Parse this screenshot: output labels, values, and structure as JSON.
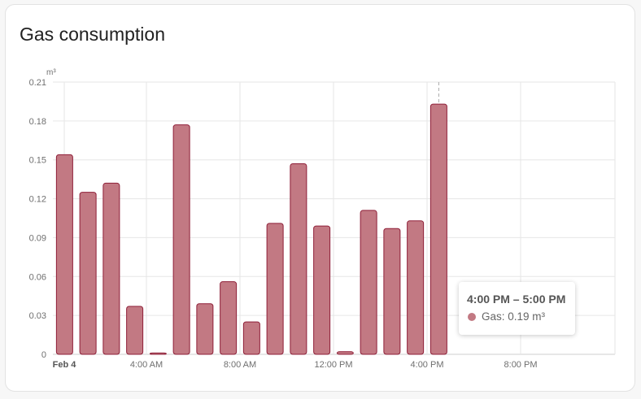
{
  "card": {
    "title": "Gas consumption"
  },
  "chart_data": {
    "type": "bar",
    "unit": "m³",
    "x_ticks": [
      "Feb 4",
      "4:00 AM",
      "8:00 AM",
      "12:00 PM",
      "4:00 PM",
      "8:00 PM"
    ],
    "hours": [
      0,
      1,
      2,
      3,
      4,
      5,
      6,
      7,
      8,
      9,
      10,
      11,
      12,
      13,
      14,
      15,
      16
    ],
    "values": [
      0.154,
      0.125,
      0.132,
      0.037,
      0.001,
      0.177,
      0.039,
      0.056,
      0.025,
      0.101,
      0.147,
      0.099,
      0.002,
      0.111,
      0.097,
      0.103,
      0.193
    ],
    "series": [
      {
        "name": "Gas",
        "color_fill": "#c27983",
        "color_stroke": "#8f1f38"
      }
    ],
    "ylim": [
      0,
      0.21
    ],
    "y_ticks": [
      "0",
      "0.03",
      "0.06",
      "0.09",
      "0.12",
      "0.15",
      "0.18",
      "0.21"
    ],
    "grid": true,
    "hover_hour": 16
  },
  "tooltip": {
    "title": "4:00 PM – 5:00 PM",
    "series_label": "Gas: 0.19 m³"
  }
}
